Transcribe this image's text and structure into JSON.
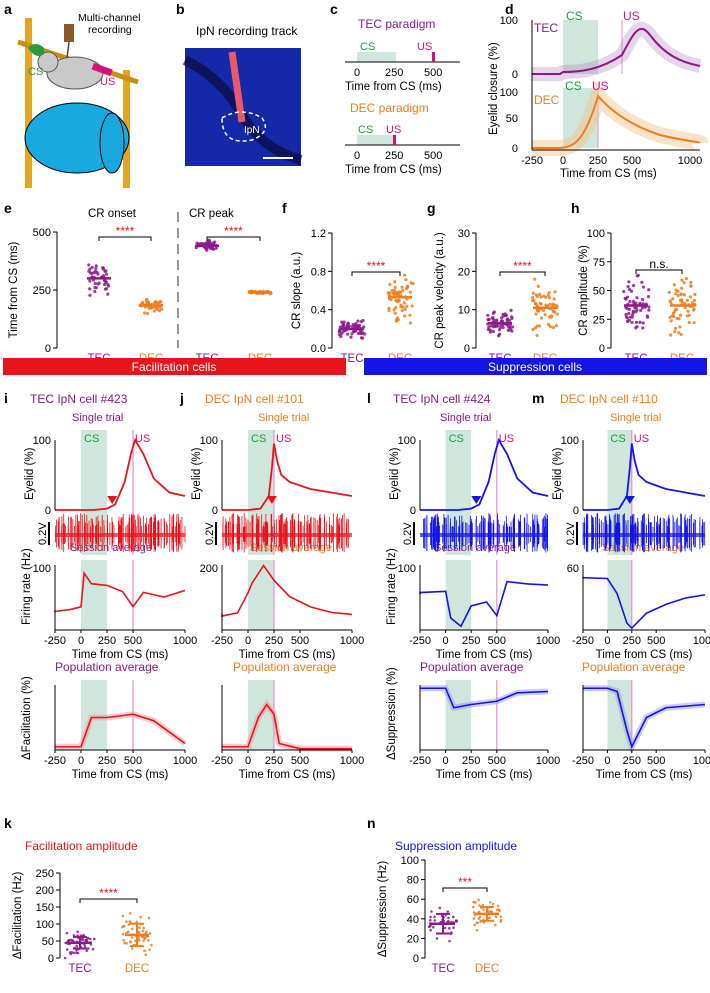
{
  "panels": {
    "a": {
      "letter": "a",
      "recording": "Multi-channel",
      "recording2": "recording",
      "cs": "CS",
      "us": "US"
    },
    "b": {
      "letter": "b",
      "title": "IpN recording track",
      "region": "IpN"
    },
    "c": {
      "letter": "c",
      "tec_title": "TEC paradigm",
      "dec_title": "DEC paradigm",
      "cs": "CS",
      "us": "US",
      "ticks": [
        "0",
        "250",
        "500"
      ],
      "xlabel": "Time from CS (ms)"
    },
    "d": {
      "letter": "d",
      "tec": "TEC",
      "dec": "DEC",
      "cs": "CS",
      "us": "US",
      "ylabel": "Eyelid closure (%)",
      "xlabel": "Time from CS (ms)",
      "xticks": [
        "-250",
        "0",
        "250",
        "500",
        "1000"
      ],
      "yticks": [
        "0",
        "50",
        "100"
      ]
    },
    "e": {
      "letter": "e",
      "ylabel": "Time from CS (ms)",
      "onset": "CR onset",
      "peak": "CR peak",
      "sig1": "****",
      "sig2": "****",
      "groups": [
        "TEC",
        "DEC",
        "TEC",
        "DEC"
      ],
      "yticks": [
        "0",
        "250",
        "500"
      ]
    },
    "f": {
      "letter": "f",
      "ylabel": "CR slope (a.u.)",
      "sig": "****",
      "groups": [
        "TEC",
        "DEC"
      ],
      "yticks": [
        "0.0",
        "0.4",
        "0.8",
        "1.2"
      ]
    },
    "g": {
      "letter": "g",
      "ylabel": "CR peak velocity (a.u.)",
      "sig": "****",
      "groups": [
        "TEC",
        "DEC"
      ],
      "yticks": [
        "0",
        "10",
        "20",
        "30"
      ]
    },
    "h": {
      "letter": "h",
      "ylabel": "CR amplitude (%)",
      "sig": "n.s.",
      "groups": [
        "TEC",
        "DEC"
      ],
      "yticks": [
        "0",
        "25",
        "50",
        "75",
        "100"
      ]
    },
    "banners": {
      "facilitation": "Facilitation cells",
      "suppression": "Suppression cells"
    },
    "i": {
      "letter": "i",
      "title": "TEC IpN cell #423"
    },
    "j": {
      "letter": "j",
      "title": "DEC IpN cell #101"
    },
    "l": {
      "letter": "l",
      "title": "TEC IpN cell #424"
    },
    "m": {
      "letter": "m",
      "title": "DEC IpN cell #110"
    },
    "sub": {
      "single": "Single trial",
      "session": "Session average",
      "population": "Population average",
      "eyelid": "Eyelid (%)",
      "volt": "0.2V",
      "fr": "Firing rate (Hz)",
      "dfac": "ΔFacilitation (%)",
      "dsup": "ΔSuppression (%)",
      "xlabel": "Time from CS (ms)",
      "cs": "CS",
      "us": "US",
      "xticks": [
        "-250",
        "0",
        "250",
        "500",
        "1000"
      ]
    },
    "k": {
      "letter": "k",
      "title": "Facilitation amplitude",
      "ylabel": "ΔFacilitation (Hz)",
      "sig": "****",
      "groups": [
        "TEC",
        "DEC"
      ],
      "yticks": [
        "0",
        "50",
        "100",
        "150",
        "200",
        "250"
      ]
    },
    "n": {
      "letter": "n",
      "title": "Suppression amplitude",
      "ylabel": "ΔSuppression (Hz)",
      "sig": "***",
      "groups": [
        "TEC",
        "DEC"
      ],
      "yticks": [
        "0",
        "20",
        "40",
        "60",
        "80",
        "100"
      ]
    }
  },
  "colors": {
    "tec": "#8b1a89",
    "dec": "#ee7d1e",
    "fac": "#e8141c",
    "sup": "#1414e6",
    "cs_fill": "#cfe6dc",
    "cs_text": "#1a9e3a"
  },
  "chart_data": [
    {
      "id": "e",
      "type": "scatter",
      "categories": [
        "TEC onset",
        "DEC onset",
        "TEC peak",
        "DEC peak"
      ],
      "medians": [
        300,
        185,
        440,
        240
      ],
      "ylim": [
        0,
        500
      ],
      "ylabel": "Time from CS (ms)"
    },
    {
      "id": "f",
      "type": "scatter",
      "categories": [
        "TEC",
        "DEC"
      ],
      "medians": [
        0.2,
        0.53
      ],
      "ylim": [
        0,
        1.2
      ],
      "ylabel": "CR slope (a.u.)"
    },
    {
      "id": "g",
      "type": "scatter",
      "categories": [
        "TEC",
        "DEC"
      ],
      "medians": [
        6.5,
        10.5
      ],
      "ylim": [
        0,
        30
      ],
      "ylabel": "CR peak velocity (a.u.)"
    },
    {
      "id": "h",
      "type": "scatter",
      "categories": [
        "TEC",
        "DEC"
      ],
      "medians": [
        37,
        37
      ],
      "ylim": [
        0,
        100
      ],
      "ylabel": "CR amplitude (%)"
    },
    {
      "id": "k",
      "type": "scatter",
      "categories": [
        "TEC",
        "DEC"
      ],
      "medians": [
        45,
        68
      ],
      "ylim": [
        0,
        250
      ],
      "ylabel": "ΔFacilitation (Hz)"
    },
    {
      "id": "n",
      "type": "scatter",
      "categories": [
        "TEC",
        "DEC"
      ],
      "medians": [
        35,
        45
      ],
      "ylim": [
        0,
        100
      ],
      "ylabel": "ΔSuppression (Hz)"
    }
  ]
}
